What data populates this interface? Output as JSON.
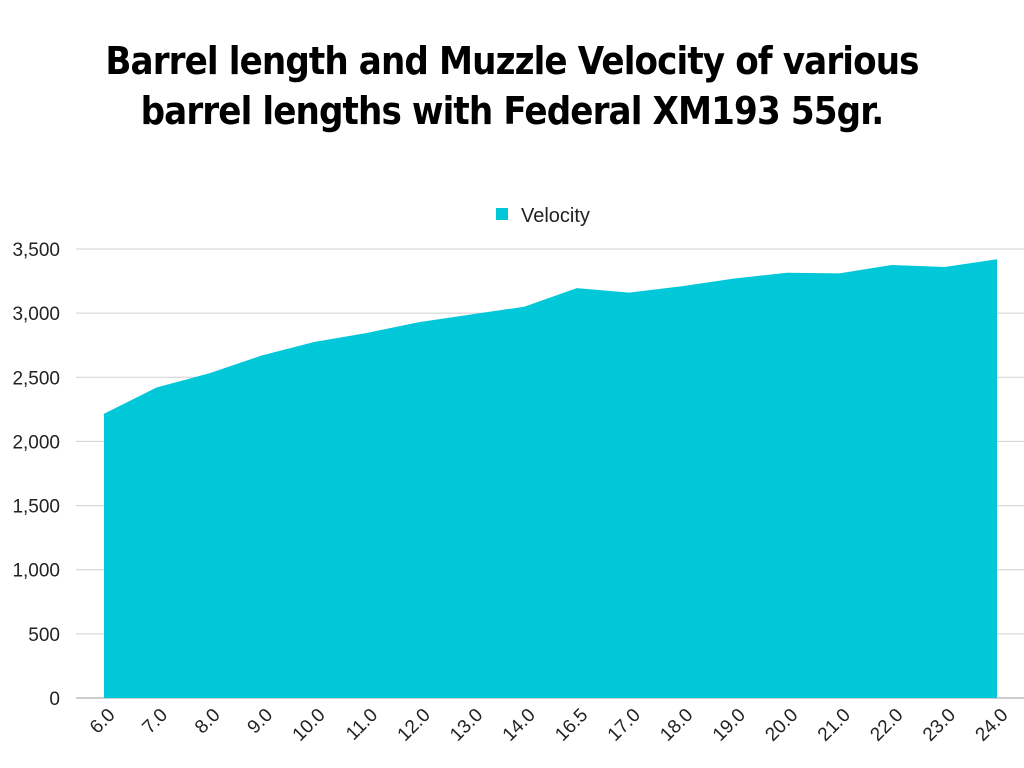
{
  "chart_data": {
    "type": "area",
    "title_line1": "Barrel length and Muzzle Velocity of various",
    "title_line2": "barrel lengths with Federal XM193 55gr.",
    "categories": [
      "6.0",
      "7.0",
      "8.0",
      "9.0",
      "10.0",
      "11.0",
      "12.0",
      "13.0",
      "14.0",
      "16.5",
      "17.0",
      "18.0",
      "19.0",
      "20.0",
      "21.0",
      "22.0",
      "23.0",
      "24.0"
    ],
    "series": [
      {
        "name": "Velocity",
        "values": [
          2215,
          2420,
          2530,
          2670,
          2775,
          2845,
          2930,
          2990,
          3050,
          3195,
          3160,
          3210,
          3270,
          3315,
          3310,
          3375,
          3360,
          3420
        ]
      }
    ],
    "y_ticks": [
      "0",
      "500",
      "1,000",
      "1,500",
      "2,000",
      "2,500",
      "3,000",
      "3,500"
    ],
    "ylim": [
      0,
      3500
    ],
    "grid": true,
    "legend_position": "top-center",
    "color": "#00c8d8"
  }
}
